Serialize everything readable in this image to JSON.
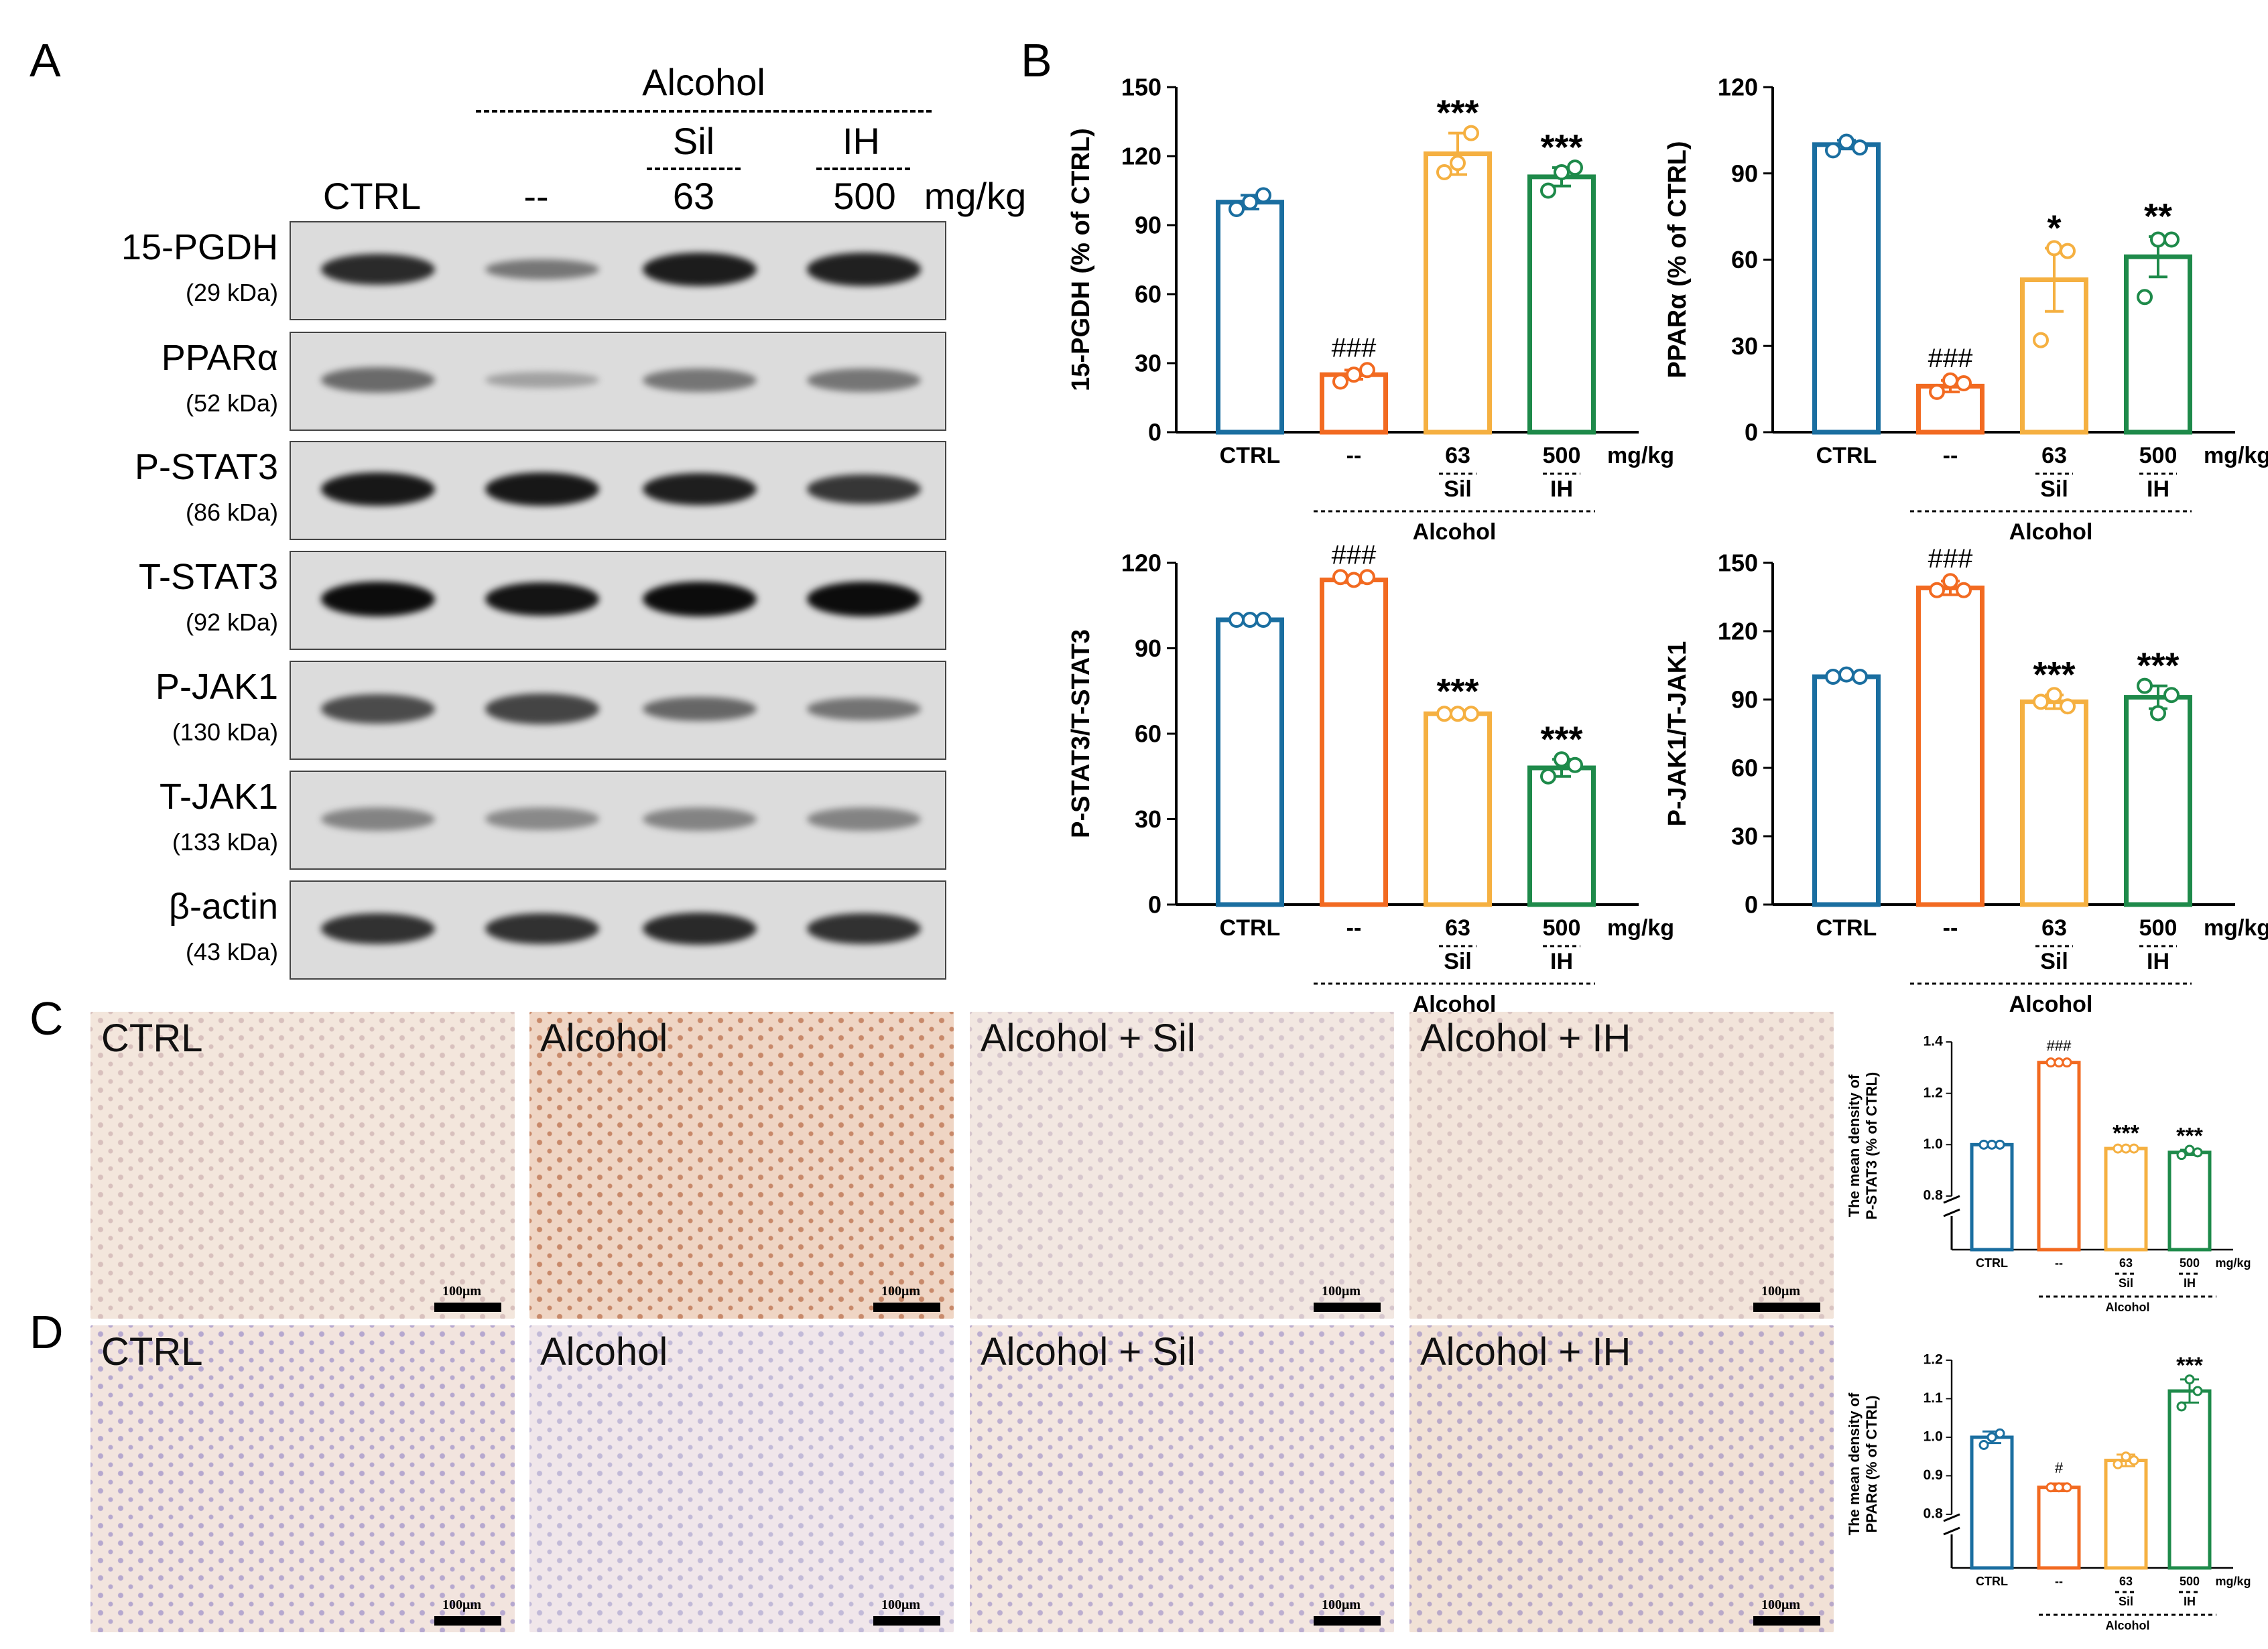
{
  "panels": {
    "a": "A",
    "b": "B",
    "c": "C",
    "d": "D"
  },
  "western": {
    "header": {
      "alcohol": "Alcohol",
      "sil": "Sil",
      "ih": "IH",
      "ctrl": "CTRL",
      "model": "--",
      "dose_sil": "63",
      "dose_ih": "500",
      "unit": "mg/kg"
    },
    "blots": [
      {
        "protein": "15-PGDH",
        "kda": "(29 kDa)",
        "intensity": [
          0.85,
          0.35,
          0.95,
          0.92
        ],
        "band_color": "#151515"
      },
      {
        "protein": "PPARα",
        "kda": "(52 kDa)",
        "intensity": [
          0.6,
          0.15,
          0.5,
          0.5
        ],
        "band_color": "#3a3a3a"
      },
      {
        "protein": "P-STAT3",
        "kda": "(86 kDa)",
        "intensity": [
          0.95,
          0.95,
          0.9,
          0.75
        ],
        "band_color": "#101010"
      },
      {
        "protein": "T-STAT3",
        "kda": "(92 kDa)",
        "intensity": [
          1.0,
          0.95,
          1.0,
          1.0
        ],
        "band_color": "#0c0c0c"
      },
      {
        "protein": "P-JAK1",
        "kda": "(130 kDa)",
        "intensity": [
          0.75,
          0.8,
          0.55,
          0.45
        ],
        "band_color": "#2a2a2a"
      },
      {
        "protein": "T-JAK1",
        "kda": "(133 kDa)",
        "intensity": [
          0.5,
          0.45,
          0.5,
          0.5
        ],
        "band_color": "#505050"
      },
      {
        "protein": "β-actin",
        "kda": "(43 kDa)",
        "intensity": [
          0.85,
          0.85,
          0.9,
          0.85
        ],
        "band_color": "#1c1c1c"
      }
    ]
  },
  "colors": {
    "ctrl": "#1a6ea0",
    "alcohol": "#f26a21",
    "sil": "#f5b041",
    "ih": "#1e8a4a"
  },
  "chart_data": [
    {
      "id": "15-PGDH",
      "type": "bar",
      "categories": [
        "CTRL",
        "--",
        "63",
        "500"
      ],
      "unit": "mg/kg",
      "group_sub": [
        "",
        "",
        "Sil",
        "IH"
      ],
      "group_label": "Alcohol",
      "values": [
        100,
        25,
        121,
        111
      ],
      "errors": [
        3,
        2,
        9,
        4
      ],
      "points": [
        [
          97,
          100,
          103
        ],
        [
          22,
          25,
          27
        ],
        [
          113,
          117,
          130
        ],
        [
          105,
          113,
          115
        ]
      ],
      "annotations": [
        "",
        "###",
        "***",
        "***"
      ],
      "ylabel": "15-PGDH (% of CTRL)",
      "ylim": [
        0,
        150
      ],
      "yticks": [
        0,
        30,
        60,
        90,
        120,
        150
      ]
    },
    {
      "id": "PPARa",
      "type": "bar",
      "categories": [
        "CTRL",
        "--",
        "63",
        "500"
      ],
      "unit": "mg/kg",
      "group_sub": [
        "",
        "",
        "Sil",
        "IH"
      ],
      "group_label": "Alcohol",
      "values": [
        100,
        16,
        53,
        61
      ],
      "errors": [
        1.5,
        2,
        11,
        7
      ],
      "points": [
        [
          98,
          101,
          99
        ],
        [
          14,
          18,
          17
        ],
        [
          32,
          64,
          63
        ],
        [
          47,
          67,
          67
        ]
      ],
      "annotations": [
        "",
        "###",
        "*",
        "**"
      ],
      "ylabel": "PPARα (% of CTRL)",
      "ylim": [
        0,
        120
      ],
      "yticks": [
        0,
        30,
        60,
        90,
        120
      ]
    },
    {
      "id": "P-STAT3/T-STAT3",
      "type": "bar",
      "categories": [
        "CTRL",
        "--",
        "63",
        "500"
      ],
      "unit": "mg/kg",
      "group_sub": [
        "",
        "",
        "Sil",
        "IH"
      ],
      "group_label": "Alcohol",
      "values": [
        100,
        114,
        67,
        48
      ],
      "errors": [
        0.5,
        1,
        0.8,
        3
      ],
      "points": [
        [
          100,
          100,
          100
        ],
        [
          115,
          114,
          115
        ],
        [
          67,
          67,
          67
        ],
        [
          45,
          51,
          49
        ]
      ],
      "annotations": [
        "",
        "###",
        "***",
        "***"
      ],
      "ylabel": "P-STAT3/T-STAT3",
      "ylim": [
        0,
        120
      ],
      "yticks": [
        0,
        30,
        60,
        90,
        120
      ]
    },
    {
      "id": "P-JAK1/T-JAK1",
      "type": "bar",
      "categories": [
        "CTRL",
        "--",
        "63",
        "500"
      ],
      "unit": "mg/kg",
      "group_sub": [
        "",
        "",
        "Sil",
        "IH"
      ],
      "group_label": "Alcohol",
      "values": [
        100,
        139,
        89,
        91
      ],
      "errors": [
        1,
        3,
        3,
        5
      ],
      "points": [
        [
          100,
          101,
          100
        ],
        [
          138,
          142,
          138
        ],
        [
          89,
          92,
          87
        ],
        [
          96,
          84,
          92
        ]
      ],
      "annotations": [
        "",
        "###",
        "***",
        "***"
      ],
      "ylabel": "P-JAK1/T-JAK1",
      "ylim": [
        0,
        150
      ],
      "yticks": [
        0,
        30,
        60,
        90,
        120,
        150
      ]
    },
    {
      "id": "IHC-P-STAT3",
      "type": "bar",
      "categories": [
        "CTRL",
        "--",
        "63",
        "500"
      ],
      "unit": "mg/kg",
      "group_sub": [
        "",
        "",
        "Sil",
        "IH"
      ],
      "group_label": "Alcohol",
      "values": [
        1.0,
        1.32,
        0.985,
        0.97
      ],
      "errors": [
        0.005,
        0.005,
        0.005,
        0.01
      ],
      "points": [
        [
          1.0,
          1.0,
          1.0
        ],
        [
          1.32,
          1.32,
          1.32
        ],
        [
          0.985,
          0.985,
          0.985
        ],
        [
          0.96,
          0.98,
          0.97
        ]
      ],
      "annotations": [
        "",
        "###",
        "***",
        "***"
      ],
      "ylabel": "The mean density of P-STAT3 (% of CTRL)",
      "ylim": [
        0.8,
        1.4
      ],
      "yticks": [
        0.8,
        1.0,
        1.2,
        1.4
      ],
      "axis_break": true
    },
    {
      "id": "IHC-PPARa",
      "type": "bar",
      "categories": [
        "CTRL",
        "--",
        "63",
        "500"
      ],
      "unit": "mg/kg",
      "group_sub": [
        "",
        "",
        "Sil",
        "IH"
      ],
      "group_label": "Alcohol",
      "values": [
        1.0,
        0.87,
        0.94,
        1.12
      ],
      "errors": [
        0.015,
        0.01,
        0.015,
        0.03
      ],
      "points": [
        [
          0.98,
          1.0,
          1.01
        ],
        [
          0.87,
          0.87,
          0.87
        ],
        [
          0.93,
          0.95,
          0.94
        ],
        [
          1.08,
          1.15,
          1.12
        ]
      ],
      "annotations": [
        "",
        "#",
        "",
        "***"
      ],
      "ylabel": "The mean density of PPARα (% of CTRL)",
      "ylim": [
        0.8,
        1.2
      ],
      "yticks": [
        0.8,
        0.9,
        1.0,
        1.1,
        1.2
      ],
      "axis_break": true
    }
  ],
  "ihc": {
    "rows": [
      {
        "id": "C",
        "labels": [
          "CTRL",
          "Alcohol",
          "Alcohol + Sil",
          "Alcohol + IH"
        ],
        "bg": [
          "#f3e6dc",
          "#efd5c4",
          "#f2e7e1",
          "#f2e4da"
        ],
        "dots": [
          "#d8c0bd",
          "#c8896a",
          "#d6c6cd",
          "#d9c4c2"
        ]
      },
      {
        "id": "D",
        "labels": [
          "CTRL",
          "Alcohol",
          "Alcohol + Sil",
          "Alcohol + IH"
        ],
        "bg": [
          "#f2e4de",
          "#f0e6ea",
          "#f3e6e0",
          "#f1e1d6"
        ],
        "dots": [
          "#b6a8cf",
          "#c2bad8",
          "#bcaed0",
          "#b9a9c9"
        ]
      }
    ],
    "scalebar": "100μm"
  }
}
